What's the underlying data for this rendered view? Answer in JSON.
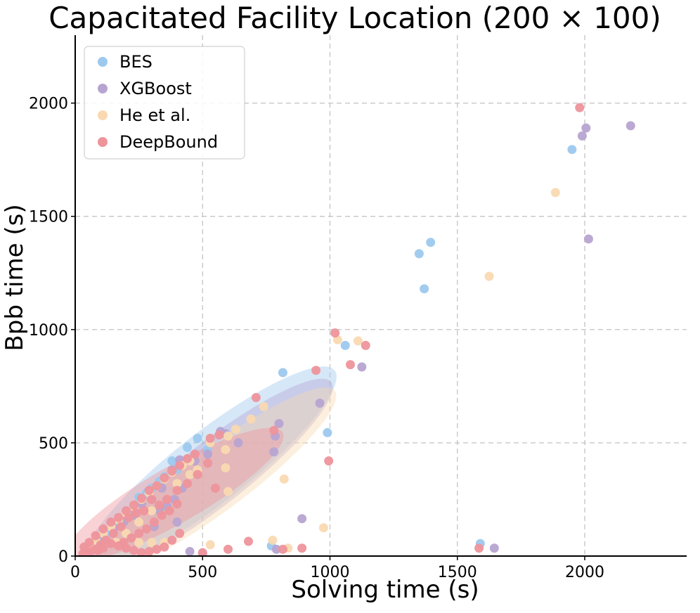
{
  "chart_data": {
    "type": "scatter",
    "title": "Capacitated Facility Location (200 × 100)",
    "xlabel": "Solving time (s)",
    "ylabel": "Bpb time (s)",
    "xlim": [
      0,
      2400
    ],
    "ylim": [
      0,
      2300
    ],
    "xticks": [
      0,
      500,
      1000,
      1500,
      2000
    ],
    "yticks": [
      0,
      500,
      1000,
      1500,
      2000
    ],
    "grid": true,
    "legend_position": "top-left",
    "series": [
      {
        "name": "BES",
        "color": "#9dc9ee",
        "ellipse": {
          "center": [
            530,
            390
          ],
          "semi_major": 620,
          "semi_minor": 140,
          "angle_deg": 38
        },
        "points": [
          [
            1950,
            1795
          ],
          [
            1395,
            1385
          ],
          [
            1350,
            1335
          ],
          [
            1370,
            1180
          ],
          [
            1060,
            930
          ],
          [
            815,
            810
          ],
          [
            990,
            545
          ],
          [
            1590,
            55
          ],
          [
            770,
            45
          ],
          [
            440,
            480
          ],
          [
            480,
            520
          ],
          [
            380,
            420
          ],
          [
            330,
            330
          ],
          [
            300,
            300
          ],
          [
            250,
            260
          ],
          [
            200,
            200
          ],
          [
            160,
            140
          ],
          [
            120,
            110
          ],
          [
            90,
            70
          ],
          [
            60,
            40
          ],
          [
            400,
            380
          ],
          [
            350,
            350
          ],
          [
            520,
            470
          ],
          [
            280,
            280
          ]
        ]
      },
      {
        "name": "XGBoost",
        "color": "#b7a4d1",
        "ellipse": {
          "center": [
            540,
            360
          ],
          "semi_major": 590,
          "semi_minor": 125,
          "angle_deg": 38
        },
        "points": [
          [
            2005,
            1890
          ],
          [
            2180,
            1900
          ],
          [
            1990,
            1855
          ],
          [
            2015,
            1400
          ],
          [
            1125,
            835
          ],
          [
            960,
            675
          ],
          [
            800,
            585
          ],
          [
            785,
            530
          ],
          [
            780,
            460
          ],
          [
            640,
            500
          ],
          [
            570,
            550
          ],
          [
            590,
            540
          ],
          [
            890,
            165
          ],
          [
            1645,
            35
          ],
          [
            790,
            30
          ],
          [
            520,
            450
          ],
          [
            470,
            420
          ],
          [
            410,
            425
          ],
          [
            380,
            380
          ],
          [
            340,
            300
          ],
          [
            300,
            250
          ],
          [
            260,
            230
          ],
          [
            230,
            180
          ],
          [
            190,
            150
          ],
          [
            150,
            120
          ],
          [
            110,
            90
          ],
          [
            80,
            60
          ],
          [
            50,
            30
          ],
          [
            450,
            360
          ],
          [
            420,
            300
          ],
          [
            390,
            250
          ],
          [
            360,
            220
          ],
          [
            330,
            200
          ],
          [
            400,
            150
          ],
          [
            310,
            130
          ],
          [
            450,
            20
          ],
          [
            500,
            10
          ]
        ]
      },
      {
        "name": "He et al.",
        "color": "#f9d9b1",
        "ellipse": {
          "center": [
            560,
            340
          ],
          "semi_major": 575,
          "semi_minor": 120,
          "angle_deg": 37
        },
        "points": [
          [
            1885,
            1605
          ],
          [
            1625,
            1235
          ],
          [
            1110,
            950
          ],
          [
            1030,
            955
          ],
          [
            740,
            660
          ],
          [
            690,
            605
          ],
          [
            630,
            560
          ],
          [
            600,
            530
          ],
          [
            530,
            500
          ],
          [
            590,
            470
          ],
          [
            590,
            390
          ],
          [
            600,
            285
          ],
          [
            820,
            340
          ],
          [
            975,
            125
          ],
          [
            775,
            70
          ],
          [
            835,
            35
          ],
          [
            450,
            420
          ],
          [
            420,
            400
          ],
          [
            380,
            370
          ],
          [
            350,
            340
          ],
          [
            320,
            310
          ],
          [
            290,
            280
          ],
          [
            260,
            250
          ],
          [
            230,
            220
          ],
          [
            200,
            190
          ],
          [
            170,
            160
          ],
          [
            140,
            130
          ],
          [
            110,
            100
          ],
          [
            80,
            70
          ],
          [
            55,
            45
          ],
          [
            480,
            380
          ],
          [
            450,
            360
          ],
          [
            400,
            320
          ],
          [
            300,
            200
          ],
          [
            250,
            150
          ],
          [
            200,
            100
          ],
          [
            160,
            60
          ],
          [
            350,
            60
          ],
          [
            300,
            60
          ],
          [
            250,
            60
          ],
          [
            530,
            50
          ]
        ]
      },
      {
        "name": "DeepBound",
        "color": "#ee949b",
        "ellipse": {
          "center": [
            390,
            270
          ],
          "semi_major": 490,
          "semi_minor": 110,
          "angle_deg": 30
        },
        "points": [
          [
            1980,
            1980
          ],
          [
            1020,
            985
          ],
          [
            1140,
            930
          ],
          [
            1080,
            845
          ],
          [
            945,
            820
          ],
          [
            710,
            700
          ],
          [
            780,
            555
          ],
          [
            565,
            535
          ],
          [
            530,
            520
          ],
          [
            995,
            420
          ],
          [
            520,
            410
          ],
          [
            550,
            300
          ],
          [
            680,
            65
          ],
          [
            815,
            30
          ],
          [
            890,
            35
          ],
          [
            1585,
            35
          ],
          [
            600,
            30
          ],
          [
            500,
            15
          ],
          [
            470,
            450
          ],
          [
            440,
            430
          ],
          [
            410,
            400
          ],
          [
            380,
            375
          ],
          [
            350,
            345
          ],
          [
            320,
            310
          ],
          [
            290,
            290
          ],
          [
            260,
            255
          ],
          [
            230,
            225
          ],
          [
            200,
            200
          ],
          [
            170,
            170
          ],
          [
            140,
            150
          ],
          [
            110,
            120
          ],
          [
            80,
            90
          ],
          [
            55,
            60
          ],
          [
            35,
            40
          ],
          [
            480,
            360
          ],
          [
            440,
            320
          ],
          [
            400,
            290
          ],
          [
            360,
            250
          ],
          [
            330,
            225
          ],
          [
            300,
            250
          ],
          [
            270,
            200
          ],
          [
            240,
            190
          ],
          [
            210,
            170
          ],
          [
            180,
            130
          ],
          [
            150,
            100
          ],
          [
            120,
            70
          ],
          [
            100,
            50
          ],
          [
            80,
            30
          ],
          [
            60,
            20
          ],
          [
            30,
            10
          ],
          [
            400,
            230
          ],
          [
            370,
            200
          ],
          [
            340,
            180
          ],
          [
            310,
            150
          ],
          [
            280,
            120
          ],
          [
            250,
            100
          ],
          [
            220,
            80
          ],
          [
            190,
            60
          ],
          [
            410,
            100
          ],
          [
            380,
            70
          ],
          [
            350,
            40
          ],
          [
            320,
            30
          ],
          [
            290,
            20
          ],
          [
            260,
            15
          ],
          [
            230,
            25
          ],
          [
            200,
            35
          ],
          [
            170,
            45
          ],
          [
            140,
            55
          ],
          [
            110,
            35
          ],
          [
            90,
            25
          ]
        ]
      }
    ]
  }
}
